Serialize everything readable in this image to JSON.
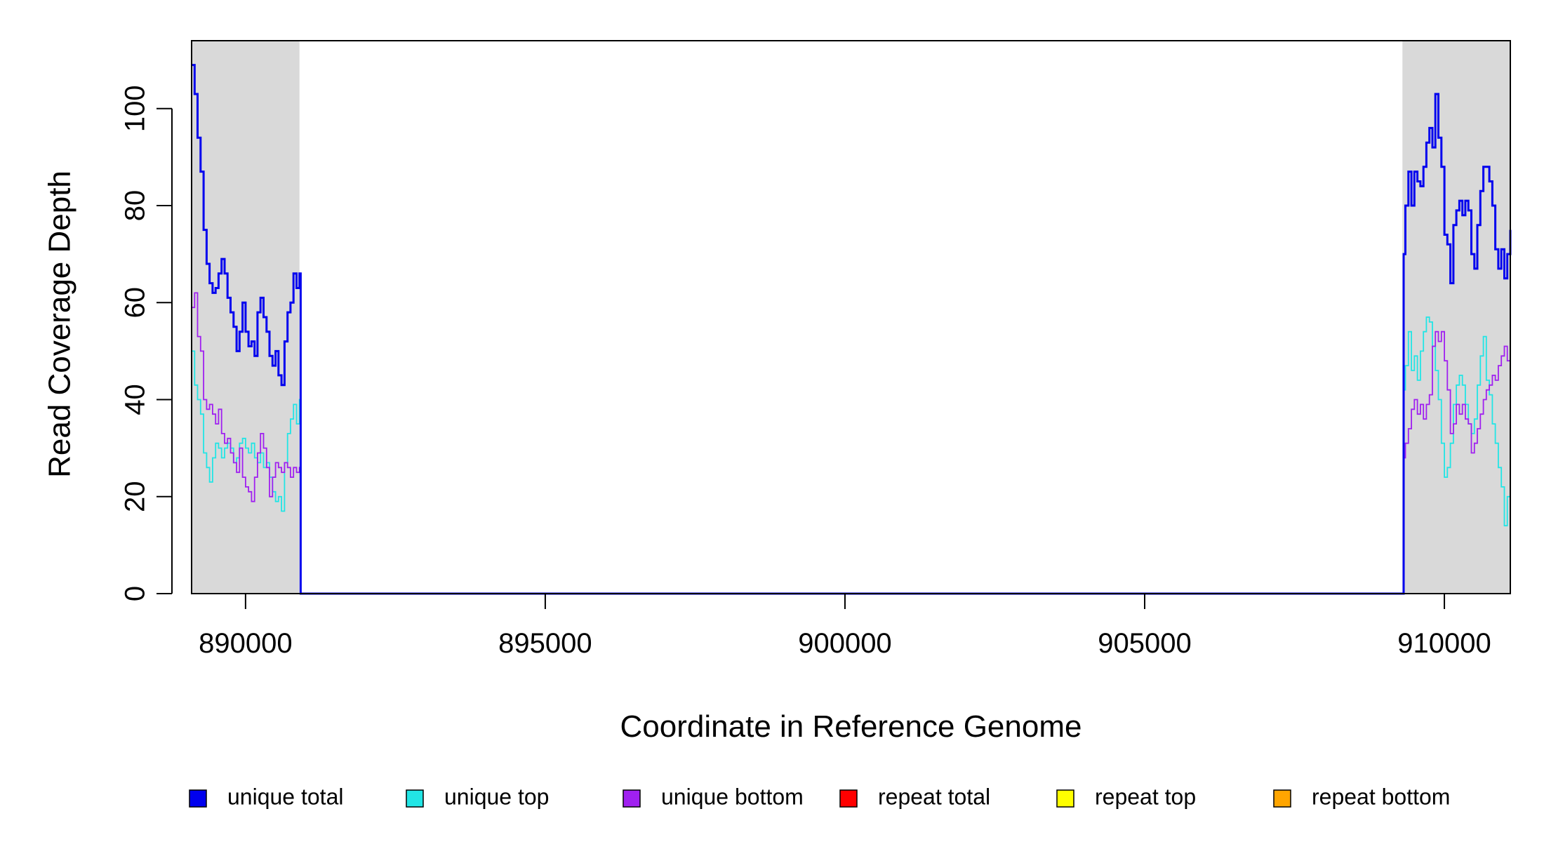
{
  "chart_data": {
    "type": "line",
    "title": "",
    "xlabel": "Coordinate in Reference Genome",
    "ylabel": "Read Coverage Depth",
    "xlim": [
      889100,
      911100
    ],
    "ylim": [
      0,
      114
    ],
    "x_ticks": [
      890000,
      895000,
      900000,
      905000,
      910000
    ],
    "x_tick_labels": [
      "890000",
      "895000",
      "900000",
      "905000",
      "910000"
    ],
    "y_ticks": [
      0,
      20,
      40,
      60,
      80,
      100
    ],
    "y_tick_labels": [
      "0",
      "20",
      "40",
      "60",
      "80",
      "100"
    ],
    "shaded_regions": [
      {
        "x0": 889100,
        "x1": 890900,
        "color": "#d9d9d9"
      },
      {
        "x0": 909300,
        "x1": 911100,
        "color": "#d9d9d9"
      }
    ],
    "legend_position": "bottom",
    "series": [
      {
        "name": "unique total",
        "color": "#0000ee",
        "line_width": 3,
        "points": [
          [
            889100,
            109
          ],
          [
            889150,
            103
          ],
          [
            889200,
            94
          ],
          [
            889250,
            87
          ],
          [
            889300,
            75
          ],
          [
            889350,
            68
          ],
          [
            889400,
            64
          ],
          [
            889450,
            62
          ],
          [
            889500,
            63
          ],
          [
            889550,
            66
          ],
          [
            889600,
            69
          ],
          [
            889650,
            66
          ],
          [
            889700,
            61
          ],
          [
            889750,
            58
          ],
          [
            889800,
            55
          ],
          [
            889850,
            50
          ],
          [
            889900,
            54
          ],
          [
            889950,
            60
          ],
          [
            890000,
            54
          ],
          [
            890050,
            51
          ],
          [
            890100,
            52
          ],
          [
            890150,
            49
          ],
          [
            890200,
            58
          ],
          [
            890250,
            61
          ],
          [
            890300,
            57
          ],
          [
            890350,
            54
          ],
          [
            890400,
            49
          ],
          [
            890450,
            47
          ],
          [
            890500,
            50
          ],
          [
            890550,
            45
          ],
          [
            890600,
            43
          ],
          [
            890650,
            52
          ],
          [
            890700,
            58
          ],
          [
            890750,
            60
          ],
          [
            890800,
            66
          ],
          [
            890850,
            63
          ],
          [
            890900,
            66
          ],
          [
            890920,
            0
          ],
          [
            909300,
            0
          ],
          [
            909320,
            70
          ],
          [
            909350,
            80
          ],
          [
            909400,
            87
          ],
          [
            909450,
            80
          ],
          [
            909500,
            87
          ],
          [
            909550,
            85
          ],
          [
            909600,
            84
          ],
          [
            909650,
            88
          ],
          [
            909700,
            93
          ],
          [
            909750,
            96
          ],
          [
            909800,
            92
          ],
          [
            909850,
            103
          ],
          [
            909900,
            94
          ],
          [
            909950,
            88
          ],
          [
            910000,
            74
          ],
          [
            910050,
            72
          ],
          [
            910100,
            64
          ],
          [
            910150,
            76
          ],
          [
            910200,
            79
          ],
          [
            910250,
            81
          ],
          [
            910300,
            78
          ],
          [
            910350,
            81
          ],
          [
            910400,
            79
          ],
          [
            910450,
            70
          ],
          [
            910500,
            67
          ],
          [
            910550,
            76
          ],
          [
            910600,
            83
          ],
          [
            910650,
            88
          ],
          [
            910700,
            88
          ],
          [
            910750,
            85
          ],
          [
            910800,
            80
          ],
          [
            910850,
            71
          ],
          [
            910900,
            67
          ],
          [
            910950,
            71
          ],
          [
            911000,
            65
          ],
          [
            911050,
            70
          ],
          [
            911100,
            75
          ]
        ]
      },
      {
        "name": "unique top",
        "color": "#22e5e5",
        "line_width": 1.8,
        "points": [
          [
            889100,
            50
          ],
          [
            889150,
            43
          ],
          [
            889200,
            40
          ],
          [
            889250,
            37
          ],
          [
            889300,
            29
          ],
          [
            889350,
            26
          ],
          [
            889400,
            23
          ],
          [
            889450,
            28
          ],
          [
            889500,
            31
          ],
          [
            889550,
            30
          ],
          [
            889600,
            28
          ],
          [
            889650,
            30
          ],
          [
            889700,
            31
          ],
          [
            889750,
            30
          ],
          [
            889800,
            27
          ],
          [
            889850,
            28
          ],
          [
            889900,
            31
          ],
          [
            889950,
            32
          ],
          [
            890000,
            30
          ],
          [
            890050,
            29
          ],
          [
            890100,
            31
          ],
          [
            890150,
            28
          ],
          [
            890200,
            27
          ],
          [
            890250,
            29
          ],
          [
            890300,
            26
          ],
          [
            890350,
            27
          ],
          [
            890400,
            24
          ],
          [
            890450,
            21
          ],
          [
            890500,
            19
          ],
          [
            890550,
            20
          ],
          [
            890600,
            17
          ],
          [
            890650,
            27
          ],
          [
            890700,
            33
          ],
          [
            890750,
            36
          ],
          [
            890800,
            39
          ],
          [
            890850,
            35
          ],
          [
            890900,
            40
          ],
          [
            890920,
            0
          ],
          [
            909300,
            0
          ],
          [
            909320,
            42
          ],
          [
            909350,
            47
          ],
          [
            909400,
            54
          ],
          [
            909450,
            46
          ],
          [
            909500,
            49
          ],
          [
            909550,
            44
          ],
          [
            909600,
            50
          ],
          [
            909650,
            54
          ],
          [
            909700,
            57
          ],
          [
            909750,
            56
          ],
          [
            909800,
            51
          ],
          [
            909850,
            46
          ],
          [
            909900,
            40
          ],
          [
            909950,
            31
          ],
          [
            910000,
            24
          ],
          [
            910050,
            26
          ],
          [
            910100,
            31
          ],
          [
            910150,
            39
          ],
          [
            910200,
            43
          ],
          [
            910250,
            45
          ],
          [
            910300,
            43
          ],
          [
            910350,
            39
          ],
          [
            910400,
            35
          ],
          [
            910450,
            33
          ],
          [
            910500,
            36
          ],
          [
            910550,
            43
          ],
          [
            910600,
            49
          ],
          [
            910650,
            53
          ],
          [
            910700,
            44
          ],
          [
            910750,
            41
          ],
          [
            910800,
            35
          ],
          [
            910850,
            31
          ],
          [
            910900,
            26
          ],
          [
            910950,
            22
          ],
          [
            911000,
            14
          ],
          [
            911050,
            20
          ],
          [
            911100,
            30
          ]
        ]
      },
      {
        "name": "unique bottom",
        "color": "#a020f0",
        "line_width": 1.8,
        "points": [
          [
            889100,
            59
          ],
          [
            889150,
            62
          ],
          [
            889200,
            53
          ],
          [
            889250,
            50
          ],
          [
            889300,
            40
          ],
          [
            889350,
            38
          ],
          [
            889400,
            39
          ],
          [
            889450,
            37
          ],
          [
            889500,
            35
          ],
          [
            889550,
            38
          ],
          [
            889600,
            33
          ],
          [
            889650,
            31
          ],
          [
            889700,
            32
          ],
          [
            889750,
            29
          ],
          [
            889800,
            27
          ],
          [
            889850,
            25
          ],
          [
            889900,
            30
          ],
          [
            889950,
            24
          ],
          [
            890000,
            22
          ],
          [
            890050,
            21
          ],
          [
            890100,
            19
          ],
          [
            890150,
            24
          ],
          [
            890200,
            29
          ],
          [
            890250,
            33
          ],
          [
            890300,
            30
          ],
          [
            890350,
            26
          ],
          [
            890400,
            20
          ],
          [
            890450,
            24
          ],
          [
            890500,
            27
          ],
          [
            890550,
            26
          ],
          [
            890600,
            25
          ],
          [
            890650,
            27
          ],
          [
            890700,
            26
          ],
          [
            890750,
            24
          ],
          [
            890800,
            26
          ],
          [
            890850,
            25
          ],
          [
            890900,
            26
          ],
          [
            890920,
            0
          ],
          [
            909300,
            0
          ],
          [
            909320,
            28
          ],
          [
            909350,
            31
          ],
          [
            909400,
            34
          ],
          [
            909450,
            38
          ],
          [
            909500,
            40
          ],
          [
            909550,
            37
          ],
          [
            909600,
            39
          ],
          [
            909650,
            36
          ],
          [
            909700,
            39
          ],
          [
            909750,
            41
          ],
          [
            909800,
            51
          ],
          [
            909850,
            54
          ],
          [
            909900,
            52
          ],
          [
            909950,
            54
          ],
          [
            910000,
            48
          ],
          [
            910050,
            42
          ],
          [
            910100,
            33
          ],
          [
            910150,
            35
          ],
          [
            910200,
            39
          ],
          [
            910250,
            37
          ],
          [
            910300,
            39
          ],
          [
            910350,
            36
          ],
          [
            910400,
            35
          ],
          [
            910450,
            29
          ],
          [
            910500,
            31
          ],
          [
            910550,
            34
          ],
          [
            910600,
            37
          ],
          [
            910650,
            40
          ],
          [
            910700,
            42
          ],
          [
            910750,
            43
          ],
          [
            910800,
            45
          ],
          [
            910850,
            44
          ],
          [
            910900,
            47
          ],
          [
            910950,
            49
          ],
          [
            911000,
            51
          ],
          [
            911050,
            48
          ],
          [
            911100,
            46
          ]
        ]
      },
      {
        "name": "repeat total",
        "color": "#ff0000",
        "line_width": 1.8,
        "points": [
          [
            889100,
            0
          ],
          [
            911100,
            0
          ]
        ]
      },
      {
        "name": "repeat top",
        "color": "#ffff00",
        "line_width": 1.8,
        "points": [
          [
            889100,
            0
          ],
          [
            911100,
            0
          ]
        ]
      },
      {
        "name": "repeat bottom",
        "color": "#ffa500",
        "line_width": 2,
        "points": [
          [
            889100,
            0
          ],
          [
            911100,
            0
          ]
        ]
      }
    ]
  }
}
